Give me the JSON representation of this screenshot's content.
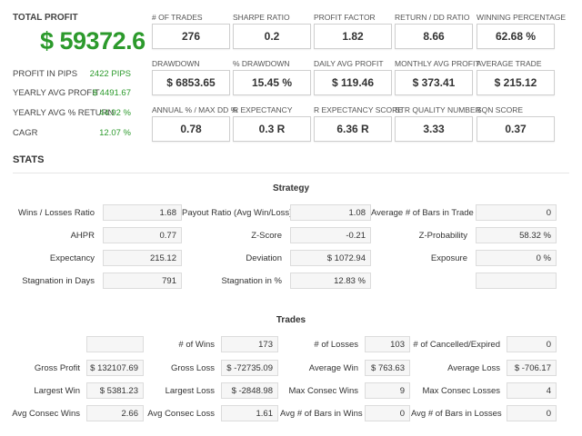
{
  "summary": {
    "total_profit_label": "TOTAL PROFIT",
    "total_profit_value": "$ 59372.6",
    "rows": [
      {
        "label": "PROFIT IN PIPS",
        "value": "2422 PIPS"
      },
      {
        "label": "YEARLY AVG PROFIT",
        "value": "$ 4491.67"
      },
      {
        "label": "YEARLY AVG % RETURN",
        "value": "44.92 %"
      },
      {
        "label": "CAGR",
        "value": "12.07 %"
      }
    ]
  },
  "metrics": [
    {
      "label": "# OF TRADES",
      "value": "276"
    },
    {
      "label": "SHARPE RATIO",
      "value": "0.2"
    },
    {
      "label": "PROFIT FACTOR",
      "value": "1.82"
    },
    {
      "label": "RETURN / DD RATIO",
      "value": "8.66"
    },
    {
      "label": "WINNING PERCENTAGE",
      "value": "62.68 %"
    },
    {
      "label": "DRAWDOWN",
      "value": "$ 6853.65"
    },
    {
      "label": "% DRAWDOWN",
      "value": "15.45 %"
    },
    {
      "label": "DAILY AVG PROFIT",
      "value": "$ 119.46"
    },
    {
      "label": "MONTHLY AVG PROFIT",
      "value": "$ 373.41"
    },
    {
      "label": "AVERAGE TRADE",
      "value": "$ 215.12"
    },
    {
      "label": "ANNUAL % / MAX DD %",
      "value": "0.78"
    },
    {
      "label": "R EXPECTANCY",
      "value": "0.3 R"
    },
    {
      "label": "R EXPECTANCY SCORE",
      "value": "6.36 R"
    },
    {
      "label": "STR QUALITY NUMBER",
      "value": "3.33"
    },
    {
      "label": "SQN SCORE",
      "value": "0.37"
    }
  ],
  "stats_title": "STATS",
  "strategy": {
    "title": "Strategy",
    "rows": [
      [
        {
          "label": "Wins / Losses Ratio",
          "value": "1.68"
        },
        {
          "label": "Payout Ratio (Avg Win/Loss)",
          "value": "1.08"
        },
        {
          "label": "Average # of Bars in Trade",
          "value": "0"
        }
      ],
      [
        {
          "label": "AHPR",
          "value": "0.77"
        },
        {
          "label": "Z-Score",
          "value": "-0.21"
        },
        {
          "label": "Z-Probability",
          "value": "58.32 %"
        }
      ],
      [
        {
          "label": "Expectancy",
          "value": "215.12"
        },
        {
          "label": "Deviation",
          "value": "$ 1072.94"
        },
        {
          "label": "Exposure",
          "value": "0 %"
        }
      ],
      [
        {
          "label": "Stagnation in Days",
          "value": "791"
        },
        {
          "label": "Stagnation in %",
          "value": "12.83 %"
        },
        {
          "label": "",
          "value": ""
        }
      ]
    ]
  },
  "trades": {
    "title": "Trades",
    "rows": [
      [
        {
          "label": "",
          "value": ""
        },
        {
          "label": "# of Wins",
          "value": "173"
        },
        {
          "label": "# of Losses",
          "value": "103"
        },
        {
          "label": "# of Cancelled/Expired",
          "value": "0"
        }
      ],
      [
        {
          "label": "Gross Profit",
          "value": "$ 132107.69"
        },
        {
          "label": "Gross Loss",
          "value": "$ -72735.09"
        },
        {
          "label": "Average Win",
          "value": "$ 763.63"
        },
        {
          "label": "Average Loss",
          "value": "$ -706.17"
        }
      ],
      [
        {
          "label": "Largest Win",
          "value": "$ 5381.23"
        },
        {
          "label": "Largest Loss",
          "value": "$ -2848.98"
        },
        {
          "label": "Max Consec Wins",
          "value": "9"
        },
        {
          "label": "Max Consec Losses",
          "value": "4"
        }
      ],
      [
        {
          "label": "Avg Consec Wins",
          "value": "2.66"
        },
        {
          "label": "Avg Consec Loss",
          "value": "1.61"
        },
        {
          "label": "Avg # of Bars in Wins",
          "value": "0"
        },
        {
          "label": "Avg # of Bars in Losses",
          "value": "0"
        }
      ]
    ]
  }
}
